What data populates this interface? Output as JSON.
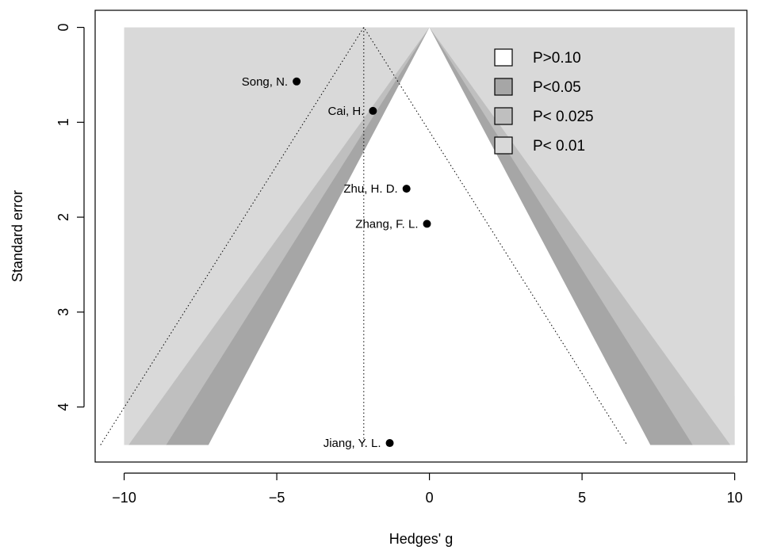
{
  "chart_data": {
    "type": "scatter",
    "subtype": "contour-enhanced funnel plot",
    "title": "",
    "xlabel": "Hedges' g",
    "ylabel": "Standard error",
    "xlim": [
      -10.95,
      10.4
    ],
    "ylim": [
      4.58,
      -0.18
    ],
    "y_axis_reversed": true,
    "x_ticks": [
      -10,
      -5,
      0,
      5,
      10
    ],
    "x_tick_labels": [
      "−10",
      "−5",
      "0",
      "5",
      "10"
    ],
    "y_ticks": [
      0,
      1,
      2,
      3,
      4
    ],
    "y_tick_labels": [
      "0",
      "1",
      "2",
      "3",
      "4"
    ],
    "grid": false,
    "legend_position": "top-right",
    "contour_center": 0,
    "contour_region_xlim": [
      -10,
      10
    ],
    "contour_region_ylim": [
      0,
      4.4
    ],
    "contours": [
      {
        "label": "P>0.10",
        "z": 1.645,
        "color": "#ffffff"
      },
      {
        "label": "P<0.05",
        "z": 1.96,
        "color": "#a6a6a6"
      },
      {
        "label": "P< 0.025",
        "z": 2.24,
        "color": "#bfbfbf"
      },
      {
        "label": "P< 0.01",
        "z": 2.576,
        "color": "#d9d9d9"
      }
    ],
    "pooled_estimate": -2.15,
    "pooled_ci_z": 1.96,
    "points": [
      {
        "label": "Song, N.",
        "x": -4.35,
        "y": 0.57
      },
      {
        "label": "Cai, H.",
        "x": -1.85,
        "y": 0.88
      },
      {
        "label": "Zhu, H. D.",
        "x": -0.75,
        "y": 1.7
      },
      {
        "label": "Zhang, F. L.",
        "x": -0.08,
        "y": 2.07
      },
      {
        "label": "Jiang, Y. L.",
        "x": -1.3,
        "y": 4.38
      }
    ]
  }
}
